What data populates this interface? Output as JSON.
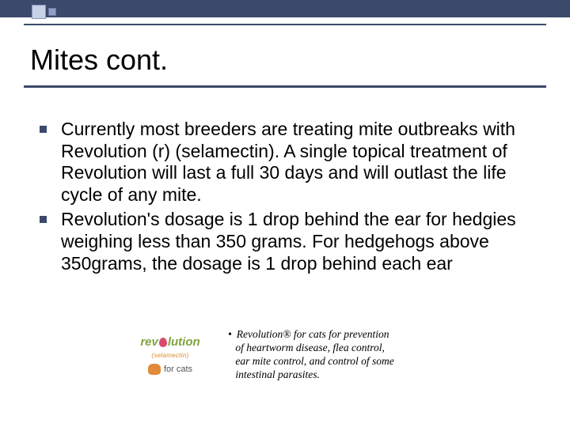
{
  "colors": {
    "bar": "#3b4a6b",
    "accent_light": "#c7d1e8",
    "accent_mid": "#8fa0c8",
    "logo_green": "#7ea43a",
    "logo_orange": "#d88a2b",
    "logo_pink": "#d9496e",
    "cat_orange": "#e08a3a",
    "text": "#000000"
  },
  "title": "Mites cont.",
  "bullets": [
    "Currently most breeders are treating mite outbreaks with Revolution (r) (selamectin). A single topical treatment of Revolution will last a full 30 days and will outlast the life cycle of any mite.",
    "Revolution's dosage is 1 drop behind the ear for hedgies weighing less than 350 grams. For hedgehogs above 350grams, the dosage is 1 drop behind each ear"
  ],
  "logo": {
    "word_left": "rev",
    "word_right": "lution",
    "sub": "(selamectin)",
    "forcats": "for cats"
  },
  "footer_bullet_glyph": "•",
  "footer_lines": [
    "Revolution® for cats for prevention",
    "of heartworm disease, flea control,",
    "ear mite control, and control of some",
    "intestinal parasites."
  ],
  "typography": {
    "title_fontsize": 36,
    "body_fontsize": 23,
    "footer_fontsize": 13.5
  }
}
